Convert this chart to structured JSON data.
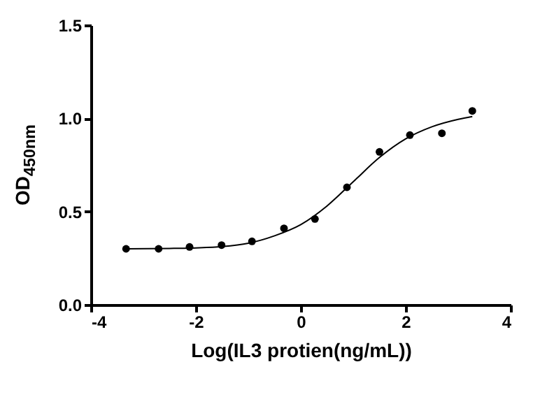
{
  "chart_data": {
    "type": "scatter",
    "xlabel": "Log(IL3 protien(ng/mL))",
    "ylabel": "OD$_{450nm}$",
    "xlim": [
      -4,
      4
    ],
    "xticks": [
      -4,
      -2,
      0,
      2,
      4
    ],
    "ylim": [
      0,
      1.5
    ],
    "yticks": [
      {
        "value": 0,
        "label": "0.0"
      },
      {
        "value": 0.5,
        "label": "0.5"
      },
      {
        "value": 1,
        "label": "1.0"
      },
      {
        "value": 1.5,
        "label": "1.5"
      }
    ],
    "grid": false,
    "series": [
      {
        "marker": "circle",
        "color": "#000000",
        "x": [
          -3.33,
          -2.71,
          -2.12,
          -1.51,
          -0.93,
          -0.32,
          0.27,
          0.88,
          1.5,
          2.08,
          2.69,
          3.27
        ],
        "values": [
          0.3,
          0.3,
          0.31,
          0.32,
          0.34,
          0.41,
          0.46,
          0.63,
          0.82,
          0.91,
          0.92,
          1.04
        ]
      },
      {
        "type": "line",
        "line_style": "solid",
        "color": "#000000",
        "x": [
          -3.33,
          -2.5,
          -2,
          -1.5,
          -1,
          -0.5,
          0,
          0.5,
          1,
          1.5,
          2,
          2.5,
          3,
          3.27
        ],
        "values": [
          0.3,
          0.302,
          0.305,
          0.312,
          0.33,
          0.37,
          0.43,
          0.53,
          0.66,
          0.79,
          0.89,
          0.955,
          0.995,
          1.01
        ]
      }
    ]
  }
}
